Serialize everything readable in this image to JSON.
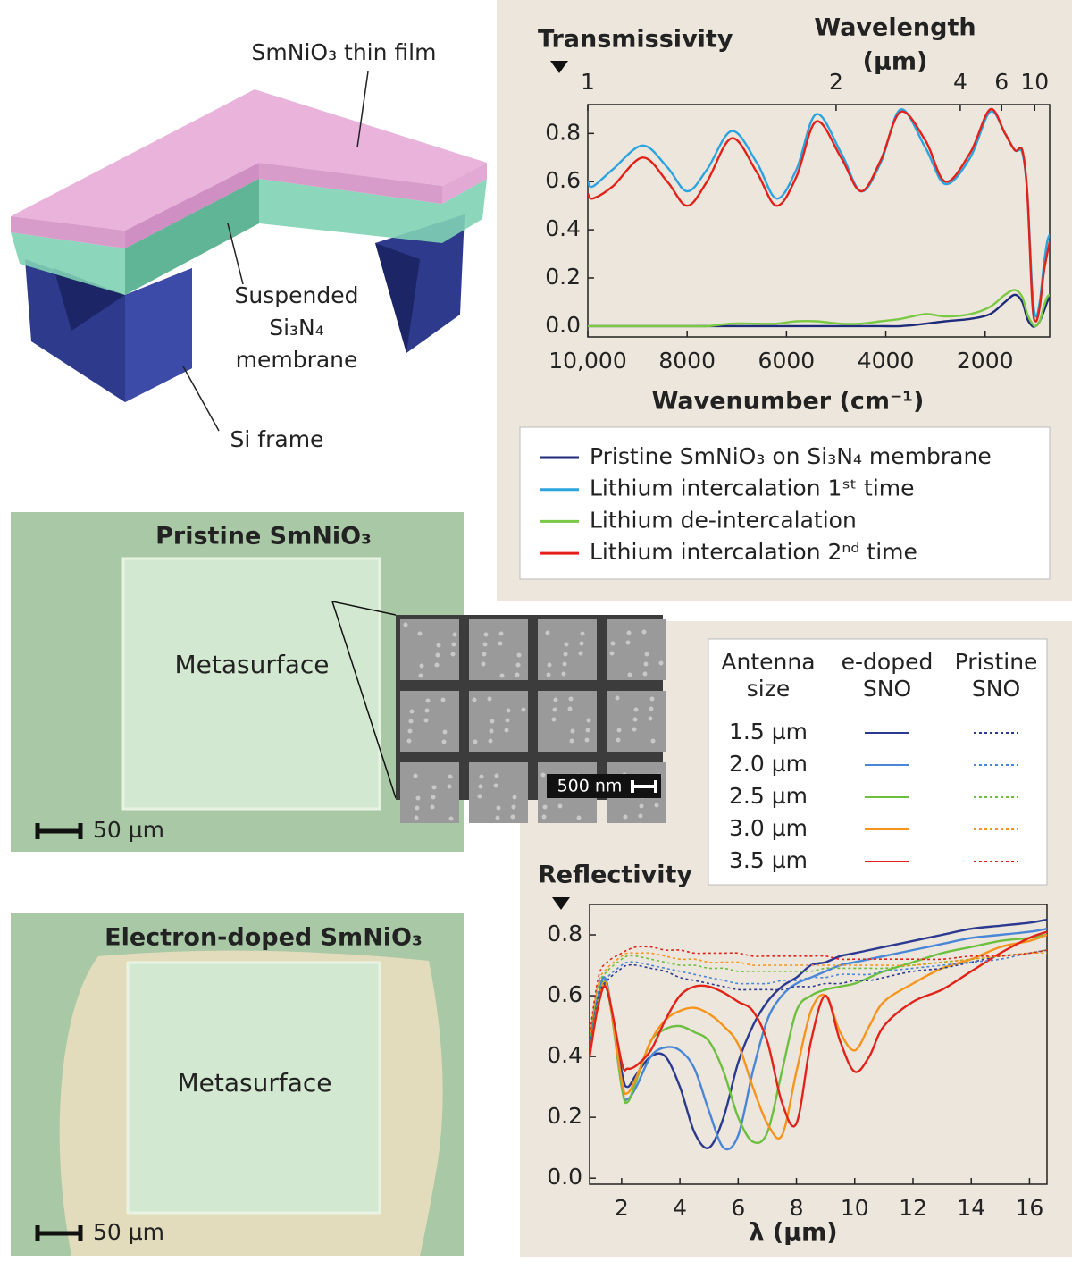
{
  "diagram": {
    "film_label": "SmNiO₃ thin film",
    "membrane_label": [
      "Suspended",
      "Si₃N₄",
      "membrane"
    ],
    "frame_label": "Si frame"
  },
  "micrographs": [
    {
      "title": "Pristine SmNiO₃",
      "region_label": "Metasurface",
      "scale_bar": "50 µm",
      "inset_scale_bar": "500 nm"
    },
    {
      "title": "Electron-doped SmNiO₃",
      "region_label": "Metasurface",
      "scale_bar": "50 µm"
    }
  ],
  "chart_data": [
    {
      "type": "line",
      "ylabel": "Transmissivity",
      "xlabel": "Wavenumber (cm⁻¹)",
      "x2label": [
        "Wavelength",
        "(µm)"
      ],
      "x": [
        10000,
        9900,
        9500,
        8900,
        8400,
        8000,
        7600,
        7100,
        6600,
        6200,
        5800,
        5400,
        4900,
        4500,
        4100,
        3700,
        3200,
        2800,
        2300,
        1900,
        1600,
        1400,
        1250,
        1150,
        1050,
        980,
        900,
        820,
        750,
        700
      ],
      "xlim": [
        10000,
        700
      ],
      "xticks": [
        {
          "value": 10000,
          "label": "10,000"
        },
        8000,
        6000,
        4000,
        2000
      ],
      "x2lim": [
        1,
        14.3
      ],
      "x2scale": "reciprocal",
      "x2ticks": [
        1,
        2,
        4,
        6,
        10
      ],
      "ylim": [
        -0.045,
        0.92
      ],
      "yticks": [
        {
          "value": 0,
          "label": "0.0"
        },
        0.2,
        0.4,
        0.6,
        0.8
      ],
      "grid": false,
      "legend": "bottom",
      "series": [
        {
          "name": "Pristine SmNiO₃ on Si₃N₄ membrane",
          "color": "#1f2a7a",
          "values": [
            0,
            0,
            0,
            0,
            0,
            0,
            0,
            0,
            0,
            0,
            0,
            0,
            0,
            0,
            0,
            0,
            0.01,
            0.02,
            0.03,
            0.05,
            0.1,
            0.13,
            0.1,
            0.03,
            0,
            0,
            0.02,
            0.06,
            0.1,
            0.12
          ]
        },
        {
          "name": "Lithium intercalation 1ˢᵗ time",
          "color": "#2aa3e0",
          "values": [
            0.6,
            0.58,
            0.65,
            0.75,
            0.66,
            0.56,
            0.65,
            0.81,
            0.68,
            0.53,
            0.65,
            0.88,
            0.72,
            0.56,
            0.68,
            0.9,
            0.74,
            0.59,
            0.7,
            0.89,
            0.8,
            0.73,
            0.72,
            0.55,
            0.15,
            0.04,
            0.1,
            0.25,
            0.35,
            0.38
          ]
        },
        {
          "name": "Lithium de-intercalation",
          "color": "#7ac943",
          "values": [
            0,
            0,
            0,
            0,
            0,
            0,
            0,
            0.01,
            0.01,
            0.01,
            0.02,
            0.02,
            0.01,
            0.01,
            0.02,
            0.03,
            0.05,
            0.04,
            0.05,
            0.08,
            0.13,
            0.15,
            0.12,
            0.05,
            0.01,
            0,
            0.02,
            0.08,
            0.12,
            0.13
          ]
        },
        {
          "name": "Lithium intercalation 2ⁿᵈ time",
          "color": "#e32118",
          "values": [
            0.55,
            0.53,
            0.58,
            0.7,
            0.6,
            0.5,
            0.6,
            0.78,
            0.64,
            0.5,
            0.62,
            0.85,
            0.7,
            0.56,
            0.69,
            0.89,
            0.77,
            0.6,
            0.72,
            0.9,
            0.8,
            0.73,
            0.73,
            0.55,
            0.1,
            0.02,
            0.08,
            0.22,
            0.3,
            0.35
          ]
        }
      ]
    },
    {
      "type": "line",
      "ylabel": "Reflectivity",
      "xlabel": "λ (µm)",
      "x": [
        0.9,
        1.2,
        1.5,
        2.0,
        2.2,
        2.5,
        3.0,
        3.5,
        4.0,
        4.5,
        5.0,
        5.5,
        6.0,
        6.5,
        7.0,
        7.5,
        8.0,
        8.5,
        9.0,
        9.5,
        10,
        10.5,
        11,
        12,
        13,
        14,
        15,
        16,
        16.6
      ],
      "xlim": [
        0.9,
        16.6
      ],
      "xticks": [
        2,
        4,
        6,
        8,
        10,
        12,
        14,
        16
      ],
      "ylim": [
        -0.02,
        0.9
      ],
      "yticks": [
        {
          "value": 0,
          "label": "0.0"
        },
        0.2,
        0.4,
        0.6,
        0.8
      ],
      "grid": false,
      "legend": "upper right",
      "legend_title": [
        "Antenna",
        "size"
      ],
      "groups": [
        {
          "name": [
            "e-doped",
            "SNO"
          ],
          "dash": "solid",
          "series": [
            {
              "name": "1.5 µm",
              "color": "#2b3990",
              "values": [
                0.42,
                0.6,
                0.62,
                0.35,
                0.3,
                0.34,
                0.4,
                0.4,
                0.3,
                0.15,
                0.1,
                0.2,
                0.38,
                0.5,
                0.58,
                0.63,
                0.66,
                0.7,
                0.71,
                0.73,
                0.74,
                0.75,
                0.76,
                0.78,
                0.8,
                0.82,
                0.83,
                0.84,
                0.85
              ]
            },
            {
              "name": "2.0 µm",
              "color": "#4a86d8",
              "values": [
                0.4,
                0.6,
                0.64,
                0.3,
                0.26,
                0.3,
                0.4,
                0.43,
                0.42,
                0.36,
                0.22,
                0.1,
                0.14,
                0.35,
                0.52,
                0.6,
                0.64,
                0.66,
                0.68,
                0.7,
                0.71,
                0.72,
                0.73,
                0.75,
                0.77,
                0.79,
                0.8,
                0.81,
                0.82
              ]
            },
            {
              "name": "2.5 µm",
              "color": "#6cbf3f",
              "values": [
                0.4,
                0.58,
                0.63,
                0.3,
                0.25,
                0.32,
                0.45,
                0.49,
                0.5,
                0.48,
                0.45,
                0.35,
                0.2,
                0.12,
                0.15,
                0.35,
                0.55,
                0.6,
                0.62,
                0.63,
                0.64,
                0.66,
                0.68,
                0.71,
                0.74,
                0.76,
                0.78,
                0.79,
                0.8
              ]
            },
            {
              "name": "3.0 µm",
              "color": "#f7941d",
              "values": [
                0.4,
                0.57,
                0.63,
                0.32,
                0.28,
                0.33,
                0.45,
                0.52,
                0.55,
                0.56,
                0.54,
                0.5,
                0.44,
                0.3,
                0.18,
                0.14,
                0.35,
                0.55,
                0.6,
                0.48,
                0.42,
                0.5,
                0.58,
                0.64,
                0.69,
                0.72,
                0.76,
                0.78,
                0.8
              ]
            },
            {
              "name": "3.5 µm",
              "color": "#e2231a",
              "values": [
                0.4,
                0.57,
                0.62,
                0.38,
                0.36,
                0.37,
                0.42,
                0.52,
                0.6,
                0.63,
                0.63,
                0.61,
                0.58,
                0.55,
                0.45,
                0.25,
                0.18,
                0.45,
                0.6,
                0.45,
                0.35,
                0.4,
                0.5,
                0.58,
                0.62,
                0.68,
                0.74,
                0.79,
                0.81
              ]
            }
          ]
        },
        {
          "name": [
            "Pristine",
            "SNO"
          ],
          "dash": "dotted",
          "series": [
            {
              "color": "#2b3990",
              "values": [
                0.45,
                0.6,
                0.65,
                0.69,
                0.7,
                0.7,
                0.69,
                0.68,
                0.66,
                0.65,
                0.64,
                0.63,
                0.62,
                0.62,
                0.62,
                0.62,
                0.63,
                0.63,
                0.64,
                0.64,
                0.65,
                0.65,
                0.66,
                0.68,
                0.69,
                0.71,
                0.73,
                0.74,
                0.75
              ]
            },
            {
              "color": "#4a86d8",
              "values": [
                0.45,
                0.62,
                0.66,
                0.7,
                0.71,
                0.71,
                0.7,
                0.69,
                0.68,
                0.67,
                0.66,
                0.65,
                0.64,
                0.64,
                0.64,
                0.65,
                0.65,
                0.66,
                0.66,
                0.67,
                0.67,
                0.67,
                0.68,
                0.69,
                0.7,
                0.71,
                0.72,
                0.74,
                0.75
              ]
            },
            {
              "color": "#6cbf3f",
              "values": [
                0.45,
                0.63,
                0.68,
                0.72,
                0.73,
                0.73,
                0.72,
                0.71,
                0.7,
                0.7,
                0.69,
                0.69,
                0.68,
                0.68,
                0.68,
                0.68,
                0.68,
                0.68,
                0.69,
                0.69,
                0.69,
                0.69,
                0.69,
                0.7,
                0.71,
                0.72,
                0.73,
                0.74,
                0.75
              ]
            },
            {
              "color": "#f7941d",
              "values": [
                0.46,
                0.64,
                0.69,
                0.73,
                0.74,
                0.74,
                0.74,
                0.73,
                0.72,
                0.72,
                0.71,
                0.71,
                0.71,
                0.7,
                0.7,
                0.7,
                0.7,
                0.7,
                0.7,
                0.7,
                0.7,
                0.7,
                0.7,
                0.7,
                0.71,
                0.72,
                0.73,
                0.74,
                0.74
              ]
            },
            {
              "color": "#e2231a",
              "values": [
                0.47,
                0.66,
                0.71,
                0.74,
                0.75,
                0.76,
                0.76,
                0.75,
                0.75,
                0.74,
                0.74,
                0.74,
                0.74,
                0.73,
                0.73,
                0.73,
                0.73,
                0.73,
                0.73,
                0.72,
                0.72,
                0.72,
                0.72,
                0.72,
                0.72,
                0.73,
                0.73,
                0.74,
                0.75
              ]
            }
          ]
        }
      ]
    }
  ]
}
